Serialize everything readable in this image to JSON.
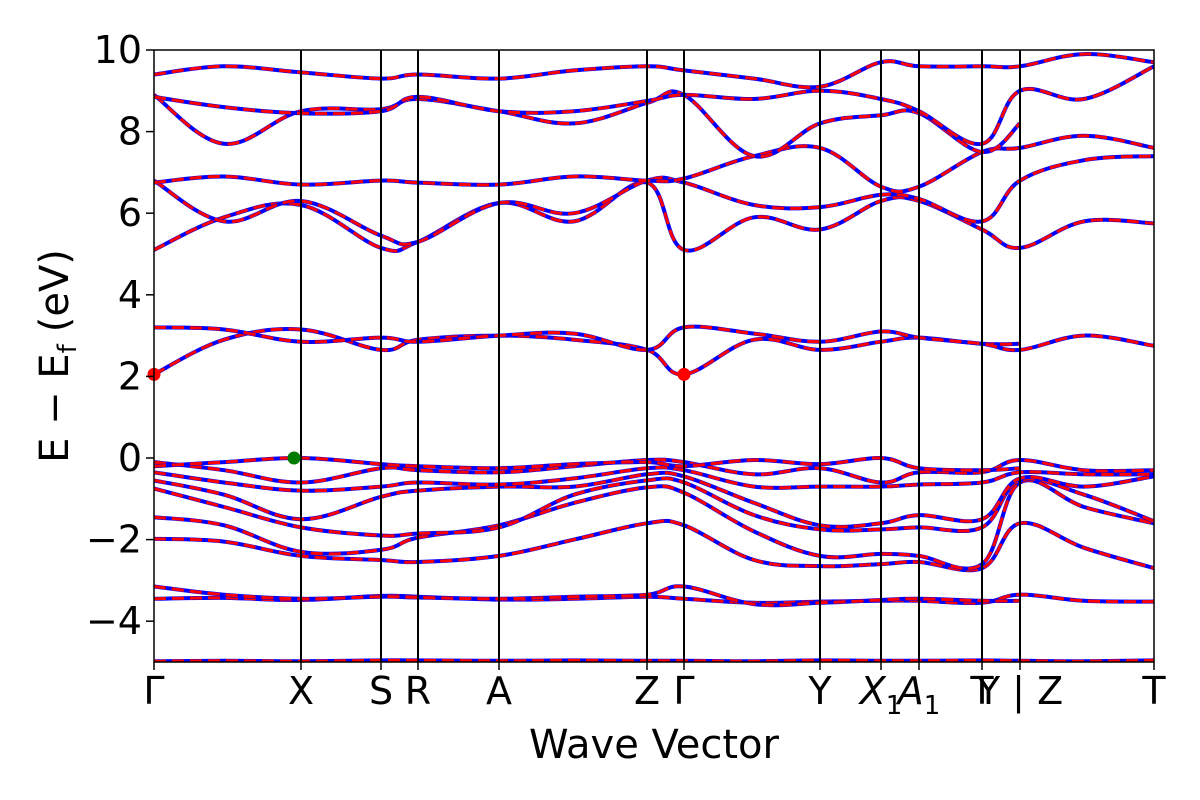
{
  "chart_data": {
    "type": "line",
    "xlabel": "Wave Vector",
    "ylabel": "E − E",
    "ylabel_subscript": "f",
    "ylabel_unit": "(eV)",
    "ylim": [
      -5,
      10
    ],
    "yticks": [
      -4,
      -2,
      0,
      2,
      4,
      6,
      8,
      10
    ],
    "xlim": [
      0,
      1
    ],
    "kpoints": [
      {
        "label": "Γ",
        "x": 0.0
      },
      {
        "label": "X",
        "x": 0.147
      },
      {
        "label": "S",
        "x": 0.227
      },
      {
        "label": "R",
        "x": 0.264
      },
      {
        "label": "A",
        "x": 0.345
      },
      {
        "label": "Z",
        "x": 0.493
      },
      {
        "label": "Γ",
        "x": 0.53
      },
      {
        "label": "Y",
        "x": 0.666
      },
      {
        "label": "X",
        "label_sub": "1",
        "x": 0.727
      },
      {
        "label": "A",
        "label_sub": "1",
        "x": 0.765
      },
      {
        "label": "T",
        "x": 0.828
      },
      {
        "label": "Y | Z",
        "x": 0.866
      },
      {
        "label": "T",
        "x": 1.0
      }
    ],
    "grid": false,
    "band_colors": {
      "spin_up": "#0000ff",
      "spin_down": "#ff0000"
    },
    "markers": [
      {
        "name": "CBM",
        "x": 0.0,
        "y": 2.05,
        "color": "#ff0000"
      },
      {
        "name": "CBM",
        "x": 0.53,
        "y": 2.05,
        "color": "#ff0000"
      },
      {
        "name": "VBM",
        "x": 0.14,
        "y": 0.0,
        "color": "#007a00"
      }
    ],
    "series": [
      {
        "x": [
          0,
          0.07,
          0.147,
          0.227,
          0.264,
          0.345,
          0.42,
          0.493,
          0.53,
          0.6,
          0.666,
          0.727,
          0.765,
          0.828,
          0.866,
          0.93,
          1.0
        ],
        "values": [
          -4.98,
          -4.97,
          -4.98,
          -4.96,
          -4.96,
          -4.97,
          -4.96,
          -4.97,
          -4.97,
          -4.98,
          -4.96,
          -4.97,
          -4.97,
          -4.96,
          -4.97,
          -4.98,
          -4.96
        ]
      },
      {
        "x": [
          0,
          0.07,
          0.147,
          0.227,
          0.264,
          0.345,
          0.42,
          0.493,
          0.53,
          0.6,
          0.666,
          0.727,
          0.765,
          0.828,
          0.866,
          0.93,
          1.0
        ],
        "values": [
          -3.45,
          -3.43,
          -3.48,
          -3.38,
          -3.4,
          -3.47,
          -3.45,
          -3.4,
          -3.45,
          -3.55,
          -3.52,
          -3.5,
          -3.5,
          -3.55,
          -3.35,
          -3.5,
          -3.52
        ]
      },
      {
        "x": [
          0,
          0.07,
          0.147,
          0.227,
          0.264,
          0.345,
          0.42,
          0.493,
          0.53,
          0.6,
          0.666,
          0.727,
          0.765,
          0.828,
          0.866
        ],
        "values": [
          -3.15,
          -3.35,
          -3.45,
          -3.4,
          -3.42,
          -3.45,
          -3.4,
          -3.35,
          -3.15,
          -3.58,
          -3.55,
          -3.48,
          -3.45,
          -3.5,
          -3.5
        ]
      },
      {
        "x": [
          0,
          0.07,
          0.147,
          0.227,
          0.264,
          0.345,
          0.42,
          0.493,
          0.53,
          0.6,
          0.666,
          0.727,
          0.765,
          0.828,
          0.866,
          0.93,
          1.0
        ],
        "values": [
          -1.98,
          -2.05,
          -2.4,
          -2.5,
          -2.55,
          -2.4,
          -2.0,
          -1.6,
          -1.65,
          -2.5,
          -2.65,
          -2.6,
          -2.55,
          -2.7,
          -1.6,
          -2.2,
          -2.7
        ]
      },
      {
        "x": [
          0,
          0.07,
          0.147,
          0.227,
          0.264,
          0.345,
          0.42,
          0.493,
          0.53,
          0.6,
          0.666,
          0.727,
          0.765,
          0.828,
          0.866,
          0.93,
          1.0
        ],
        "values": [
          -1.45,
          -1.65,
          -2.3,
          -2.25,
          -1.95,
          -1.65,
          -1.1,
          -0.72,
          -0.85,
          -1.8,
          -2.4,
          -2.35,
          -2.4,
          -2.6,
          -0.6,
          -1.2,
          -1.6
        ]
      },
      {
        "x": [
          0,
          0.07,
          0.147,
          0.227,
          0.264,
          0.345,
          0.42,
          0.493,
          0.53,
          0.6,
          0.666,
          0.727,
          0.765,
          0.828,
          0.866,
          0.93,
          1.0
        ],
        "values": [
          -0.75,
          -1.2,
          -1.7,
          -1.9,
          -1.85,
          -1.7,
          -0.9,
          -0.55,
          -0.6,
          -1.4,
          -1.75,
          -1.75,
          -1.7,
          -1.7,
          -0.55,
          -0.9,
          -1.55
        ]
      },
      {
        "x": [
          0,
          0.07,
          0.147,
          0.227,
          0.264,
          0.345,
          0.42,
          0.493,
          0.53,
          0.6,
          0.666,
          0.727,
          0.765,
          0.828,
          0.866,
          0.93,
          1.0
        ],
        "values": [
          -0.55,
          -0.9,
          -1.5,
          -0.95,
          -0.8,
          -0.7,
          -0.7,
          -0.4,
          -0.45,
          -1.1,
          -1.65,
          -1.6,
          -1.4,
          -1.5,
          -0.5,
          -0.7,
          -0.45
        ]
      },
      {
        "x": [
          0,
          0.07,
          0.147,
          0.227,
          0.264,
          0.345,
          0.42,
          0.493,
          0.53,
          0.6,
          0.666,
          0.727,
          0.765,
          0.828,
          0.866,
          0.93,
          1.0
        ],
        "values": [
          -0.35,
          -0.6,
          -0.8,
          -0.7,
          -0.6,
          -0.65,
          -0.5,
          -0.25,
          -0.3,
          -0.7,
          -0.7,
          -0.7,
          -0.65,
          -0.6,
          -0.35,
          -0.4,
          -0.4
        ]
      },
      {
        "x": [
          0,
          0.07,
          0.147,
          0.227,
          0.264,
          0.345,
          0.42,
          0.493,
          0.53,
          0.6,
          0.666,
          0.727,
          0.765,
          0.828,
          0.866,
          0.93,
          1.0
        ],
        "values": [
          -0.1,
          -0.3,
          -0.6,
          -0.25,
          -0.3,
          -0.35,
          -0.2,
          -0.05,
          -0.1,
          -0.4,
          -0.25,
          -0.6,
          -0.35,
          -0.35,
          -0.05,
          -0.3,
          -0.3
        ]
      },
      {
        "x": [
          0,
          0.07,
          0.147,
          0.227,
          0.264,
          0.345,
          0.42,
          0.493,
          0.53,
          0.6,
          0.666,
          0.727,
          0.765,
          0.828,
          0.866
        ],
        "values": [
          -0.2,
          -0.1,
          0.0,
          -0.15,
          -0.2,
          -0.25,
          -0.15,
          -0.1,
          -0.2,
          -0.05,
          -0.15,
          0.0,
          -0.25,
          -0.3,
          -0.25
        ]
      },
      {
        "x": [
          0,
          0.07,
          0.147,
          0.227,
          0.264,
          0.345,
          0.42,
          0.493,
          0.53,
          0.6,
          0.666,
          0.727,
          0.765,
          0.828,
          0.866
        ],
        "values": [
          2.05,
          2.9,
          3.15,
          2.65,
          2.9,
          3.0,
          2.9,
          2.65,
          2.05,
          2.9,
          2.65,
          2.85,
          2.95,
          2.8,
          2.8
        ]
      },
      {
        "x": [
          0,
          0.07,
          0.147,
          0.227,
          0.264,
          0.345,
          0.42,
          0.493,
          0.53,
          0.6,
          0.666,
          0.727,
          0.765,
          0.828,
          0.866,
          0.93,
          1.0
        ],
        "values": [
          3.2,
          3.15,
          2.85,
          2.95,
          2.85,
          3.0,
          3.05,
          2.65,
          3.2,
          3.05,
          2.85,
          3.1,
          2.95,
          2.8,
          2.65,
          3.0,
          2.75
        ]
      },
      {
        "x": [
          0,
          0.07,
          0.147,
          0.227,
          0.264,
          0.345,
          0.42,
          0.493,
          0.53,
          0.6,
          0.666,
          0.727,
          0.765,
          0.828,
          0.866,
          0.93,
          1.0
        ],
        "values": [
          5.1,
          5.9,
          6.2,
          5.15,
          5.3,
          6.25,
          5.8,
          6.75,
          5.1,
          5.9,
          5.6,
          6.3,
          6.3,
          5.6,
          5.15,
          5.8,
          5.75
        ]
      },
      {
        "x": [
          0,
          0.07,
          0.147,
          0.227,
          0.264,
          0.345,
          0.42,
          0.493,
          0.53,
          0.6,
          0.666,
          0.727,
          0.765,
          0.828,
          0.866,
          0.93,
          1.0
        ],
        "values": [
          6.8,
          5.8,
          6.3,
          5.45,
          5.3,
          6.25,
          6.0,
          6.8,
          6.75,
          6.2,
          6.15,
          6.45,
          6.35,
          5.8,
          6.8,
          7.3,
          7.4
        ]
      },
      {
        "x": [
          0,
          0.07,
          0.147,
          0.227,
          0.264,
          0.345,
          0.42,
          0.493,
          0.53,
          0.6,
          0.666,
          0.727,
          0.765,
          0.828,
          0.866,
          0.93,
          1.0
        ],
        "values": [
          6.75,
          6.9,
          6.7,
          6.8,
          6.75,
          6.7,
          6.9,
          6.8,
          6.85,
          7.4,
          7.6,
          6.65,
          6.65,
          7.5,
          7.6,
          7.9,
          7.6
        ]
      },
      {
        "x": [
          0,
          0.07,
          0.147,
          0.227,
          0.264,
          0.345,
          0.42,
          0.493,
          0.53,
          0.6,
          0.666,
          0.727,
          0.765,
          0.828,
          0.866
        ],
        "values": [
          8.9,
          7.7,
          8.5,
          8.55,
          8.8,
          8.5,
          8.2,
          8.7,
          8.9,
          7.4,
          8.2,
          8.4,
          8.45,
          7.5,
          8.2
        ]
      },
      {
        "x": [
          0,
          0.07,
          0.147,
          0.227,
          0.264,
          0.345,
          0.42,
          0.493,
          0.53,
          0.6,
          0.666,
          0.727,
          0.765,
          0.828,
          0.866,
          0.93,
          1.0
        ],
        "values": [
          8.85,
          8.6,
          8.45,
          8.5,
          8.85,
          8.5,
          8.5,
          8.75,
          8.9,
          8.8,
          9.0,
          8.8,
          8.5,
          7.7,
          9.0,
          8.8,
          9.6
        ]
      },
      {
        "x": [
          0,
          0.07,
          0.147,
          0.227,
          0.264,
          0.345,
          0.42,
          0.493,
          0.53,
          0.6,
          0.666,
          0.727,
          0.765,
          0.828,
          0.866,
          0.93,
          1.0
        ],
        "values": [
          9.4,
          9.6,
          9.45,
          9.3,
          9.4,
          9.3,
          9.5,
          9.6,
          9.5,
          9.3,
          9.1,
          9.7,
          9.6,
          9.6,
          9.6,
          9.9,
          9.7
        ]
      }
    ]
  }
}
